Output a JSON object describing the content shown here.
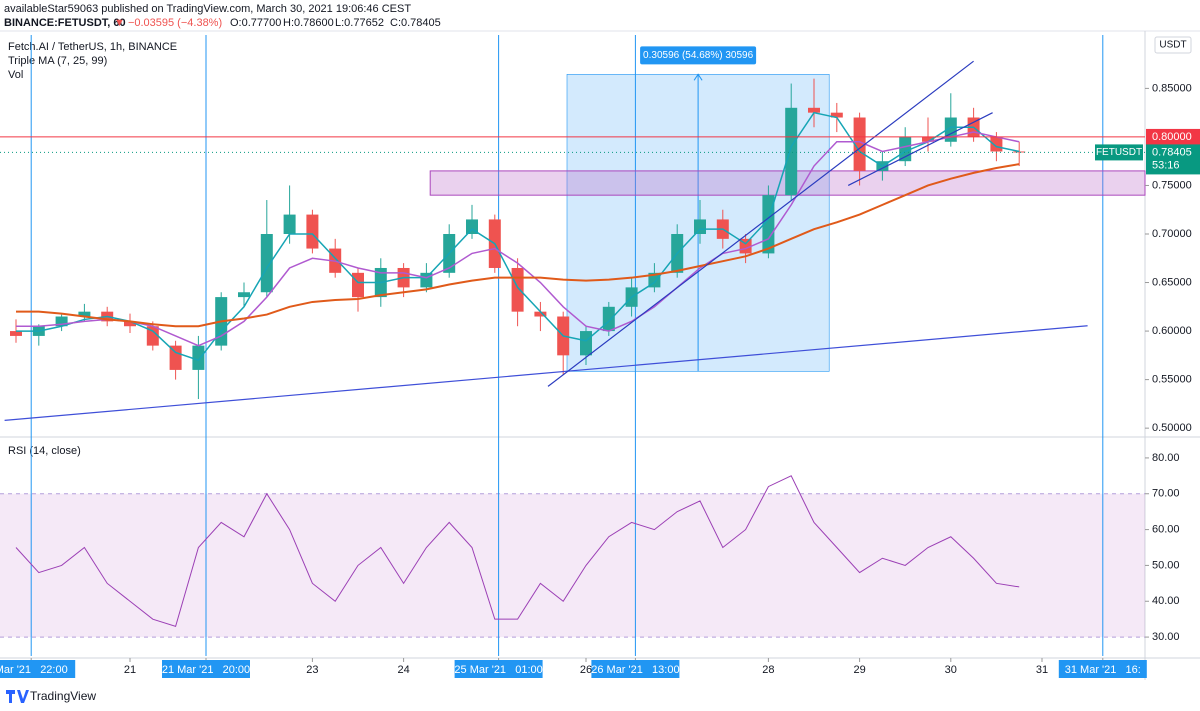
{
  "header": {
    "line1": "availableStar59063 published on TradingView.com, March 30, 2021 19:06:46 CEST",
    "symbol": "BINANCE:FETUSDT, 60",
    "change": "▼ −0.03595 (−4.38%)",
    "ohlc": [
      "O:0.77700",
      "H:0.78600",
      "L:0.77652",
      "C:0.78405"
    ]
  },
  "footer": "TradingView",
  "chart_data": [
    {
      "type": "candlestick",
      "title": "Fetch.AI / TetherUS, 1h, BINANCE",
      "indicator": "Triple MA (7, 25, 99)",
      "volume_label": "Vol",
      "unit": "USDT",
      "x": [
        "2021-03-19T18:00",
        "2021-03-20T00:00",
        "2021-03-20T06:00",
        "2021-03-20T12:00",
        "2021-03-20T18:00",
        "2021-03-21T00:00",
        "2021-03-21T06:00",
        "2021-03-21T12:00",
        "2021-03-21T18:00",
        "2021-03-22T00:00",
        "2021-03-22T06:00",
        "2021-03-22T12:00",
        "2021-03-22T18:00",
        "2021-03-23T00:00",
        "2021-03-23T06:00",
        "2021-03-23T12:00",
        "2021-03-23T18:00",
        "2021-03-24T00:00",
        "2021-03-24T06:00",
        "2021-03-24T12:00",
        "2021-03-24T18:00",
        "2021-03-25T00:00",
        "2021-03-25T06:00",
        "2021-03-25T12:00",
        "2021-03-25T18:00",
        "2021-03-26T00:00",
        "2021-03-26T06:00",
        "2021-03-26T12:00",
        "2021-03-26T18:00",
        "2021-03-27T00:00",
        "2021-03-27T06:00",
        "2021-03-27T12:00",
        "2021-03-27T18:00",
        "2021-03-28T00:00",
        "2021-03-28T06:00",
        "2021-03-28T12:00",
        "2021-03-28T18:00",
        "2021-03-29T00:00",
        "2021-03-29T06:00",
        "2021-03-29T12:00",
        "2021-03-29T18:00",
        "2021-03-30T00:00",
        "2021-03-30T06:00",
        "2021-03-30T12:00",
        "2021-03-30T18:00"
      ],
      "open": [
        0.6,
        0.595,
        0.605,
        0.615,
        0.62,
        0.61,
        0.605,
        0.585,
        0.56,
        0.585,
        0.635,
        0.64,
        0.7,
        0.72,
        0.685,
        0.66,
        0.635,
        0.665,
        0.645,
        0.66,
        0.7,
        0.715,
        0.665,
        0.62,
        0.615,
        0.575,
        0.6,
        0.625,
        0.645,
        0.66,
        0.7,
        0.715,
        0.695,
        0.68,
        0.74,
        0.83,
        0.825,
        0.82,
        0.765,
        0.775,
        0.8,
        0.795,
        0.82,
        0.8,
        0.785
      ],
      "high": [
        0.612,
        0.607,
        0.617,
        0.628,
        0.625,
        0.618,
        0.61,
        0.59,
        0.595,
        0.64,
        0.65,
        0.735,
        0.75,
        0.725,
        0.695,
        0.665,
        0.675,
        0.67,
        0.67,
        0.71,
        0.73,
        0.72,
        0.675,
        0.63,
        0.62,
        0.605,
        0.63,
        0.655,
        0.67,
        0.71,
        0.735,
        0.725,
        0.7,
        0.75,
        0.855,
        0.86,
        0.835,
        0.825,
        0.785,
        0.81,
        0.82,
        0.845,
        0.83,
        0.805,
        0.795
      ],
      "low": [
        0.588,
        0.585,
        0.6,
        0.61,
        0.605,
        0.598,
        0.58,
        0.55,
        0.53,
        0.58,
        0.625,
        0.635,
        0.69,
        0.68,
        0.655,
        0.62,
        0.625,
        0.635,
        0.64,
        0.655,
        0.695,
        0.66,
        0.605,
        0.6,
        0.555,
        0.565,
        0.595,
        0.615,
        0.64,
        0.655,
        0.69,
        0.685,
        0.67,
        0.675,
        0.735,
        0.81,
        0.805,
        0.75,
        0.755,
        0.77,
        0.785,
        0.79,
        0.795,
        0.775,
        0.77
      ],
      "close": [
        0.595,
        0.605,
        0.615,
        0.62,
        0.61,
        0.605,
        0.585,
        0.56,
        0.585,
        0.635,
        0.64,
        0.7,
        0.72,
        0.685,
        0.66,
        0.635,
        0.665,
        0.645,
        0.66,
        0.7,
        0.715,
        0.665,
        0.62,
        0.615,
        0.575,
        0.6,
        0.625,
        0.645,
        0.66,
        0.7,
        0.715,
        0.695,
        0.68,
        0.74,
        0.83,
        0.825,
        0.82,
        0.765,
        0.775,
        0.8,
        0.795,
        0.82,
        0.8,
        0.785,
        0.784
      ],
      "colors": {
        "up": "#26a69a",
        "down": "#ef5350"
      },
      "series": [
        {
          "color": "#16a5b5",
          "values": [
            0.6,
            0.6,
            0.605,
            0.612,
            0.615,
            0.61,
            0.6,
            0.578,
            0.57,
            0.6,
            0.625,
            0.665,
            0.7,
            0.7,
            0.675,
            0.65,
            0.65,
            0.655,
            0.655,
            0.68,
            0.705,
            0.69,
            0.645,
            0.62,
            0.595,
            0.59,
            0.61,
            0.635,
            0.65,
            0.68,
            0.705,
            0.705,
            0.69,
            0.715,
            0.79,
            0.825,
            0.82,
            0.785,
            0.77,
            0.785,
            0.795,
            0.81,
            0.81,
            0.79,
            0.785
          ]
        },
        {
          "color": "#b05ad0",
          "values": [
            0.605,
            0.605,
            0.607,
            0.61,
            0.612,
            0.61,
            0.605,
            0.595,
            0.585,
            0.595,
            0.61,
            0.635,
            0.665,
            0.675,
            0.672,
            0.665,
            0.66,
            0.66,
            0.655,
            0.665,
            0.68,
            0.685,
            0.67,
            0.65,
            0.625,
            0.605,
            0.6,
            0.61,
            0.625,
            0.645,
            0.665,
            0.68,
            0.685,
            0.695,
            0.73,
            0.77,
            0.795,
            0.795,
            0.785,
            0.79,
            0.795,
            0.8,
            0.805,
            0.8,
            0.795
          ]
        },
        {
          "color": "#e05a1a",
          "values": [
            0.62,
            0.62,
            0.618,
            0.615,
            0.612,
            0.61,
            0.607,
            0.605,
            0.605,
            0.61,
            0.613,
            0.617,
            0.625,
            0.63,
            0.632,
            0.633,
            0.637,
            0.64,
            0.643,
            0.648,
            0.652,
            0.655,
            0.655,
            0.655,
            0.653,
            0.652,
            0.653,
            0.655,
            0.658,
            0.662,
            0.667,
            0.672,
            0.677,
            0.685,
            0.695,
            0.705,
            0.712,
            0.72,
            0.73,
            0.74,
            0.75,
            0.757,
            0.763,
            0.768,
            0.772
          ]
        }
      ],
      "ylim": [
        0.495,
        0.905
      ],
      "yticks": [
        {
          "value": 0.5,
          "label": "0.50000"
        },
        {
          "value": 0.55,
          "label": "0.55000"
        },
        {
          "value": 0.6,
          "label": "0.60000"
        },
        {
          "value": 0.65,
          "label": "0.65000"
        },
        {
          "value": 0.7,
          "label": "0.70000"
        },
        {
          "value": 0.75,
          "label": "0.75000"
        },
        {
          "value": 0.85,
          "label": "0.85000"
        }
      ],
      "hline": {
        "value": 0.8,
        "label": "0.80000",
        "color": "#f23645"
      },
      "last": {
        "name": "FETUSDT",
        "value": 0.78405,
        "label": "0.78405",
        "countdown": "53:16",
        "color": "#089981"
      },
      "zone": {
        "start": "2021-03-24T07:00",
        "low": 0.74,
        "high": 0.765
      },
      "measure": {
        "start": "2021-03-25T19:00",
        "end": "2021-03-28T16:00",
        "low": 0.5585,
        "high": 0.8645,
        "label": "0.30596 (54.68%) 30596"
      },
      "trendlines": [
        {
          "x": [
            "2021-03-19T15:00",
            "2021-03-31T12:00"
          ],
          "y": [
            0.508,
            0.6055
          ],
          "color": "#3f4fd8"
        },
        {
          "x": [
            "2021-03-25T14:00",
            "2021-03-30T06:00"
          ],
          "y": [
            0.543,
            0.878
          ],
          "color": "#2a3bbf"
        },
        {
          "x": [
            "2021-03-28T21:00",
            "2021-03-30T11:00"
          ],
          "y": [
            0.75,
            0.825
          ],
          "color": "#2a3bbf"
        }
      ],
      "vlines": [
        "2021-03-19T22:00",
        "2021-03-21T20:00",
        "2021-03-25T01:00",
        "2021-03-26T13:00",
        "2021-03-31T16:00"
      ]
    },
    {
      "type": "line",
      "title": "RSI (14, close)",
      "x": [
        "2021-03-19T18:00",
        "2021-03-20T00:00",
        "2021-03-20T06:00",
        "2021-03-20T12:00",
        "2021-03-20T18:00",
        "2021-03-21T00:00",
        "2021-03-21T06:00",
        "2021-03-21T12:00",
        "2021-03-21T18:00",
        "2021-03-22T00:00",
        "2021-03-22T06:00",
        "2021-03-22T12:00",
        "2021-03-22T18:00",
        "2021-03-23T00:00",
        "2021-03-23T06:00",
        "2021-03-23T12:00",
        "2021-03-23T18:00",
        "2021-03-24T00:00",
        "2021-03-24T06:00",
        "2021-03-24T12:00",
        "2021-03-24T18:00",
        "2021-03-25T00:00",
        "2021-03-25T06:00",
        "2021-03-25T12:00",
        "2021-03-25T18:00",
        "2021-03-26T00:00",
        "2021-03-26T06:00",
        "2021-03-26T12:00",
        "2021-03-26T18:00",
        "2021-03-27T00:00",
        "2021-03-27T06:00",
        "2021-03-27T12:00",
        "2021-03-27T18:00",
        "2021-03-28T00:00",
        "2021-03-28T06:00",
        "2021-03-28T12:00",
        "2021-03-28T18:00",
        "2021-03-29T00:00",
        "2021-03-29T06:00",
        "2021-03-29T12:00",
        "2021-03-29T18:00",
        "2021-03-30T00:00",
        "2021-03-30T06:00",
        "2021-03-30T12:00",
        "2021-03-30T18:00"
      ],
      "values": [
        55,
        48,
        50,
        55,
        45,
        40,
        35,
        33,
        55,
        62,
        58,
        70,
        60,
        45,
        40,
        50,
        55,
        45,
        55,
        62,
        55,
        35,
        35,
        45,
        40,
        50,
        58,
        62,
        60,
        65,
        68,
        55,
        60,
        72,
        75,
        62,
        55,
        48,
        52,
        50,
        55,
        58,
        52,
        45,
        44
      ],
      "color": "#9b3fb5",
      "band": [
        30,
        70
      ],
      "ylim": [
        25,
        85
      ],
      "yticks": [
        {
          "value": 30,
          "label": "30.00"
        },
        {
          "value": 40,
          "label": "40.00"
        },
        {
          "value": 50,
          "label": "50.00"
        },
        {
          "value": 60,
          "label": "60.00"
        },
        {
          "value": 70,
          "label": "70.00"
        },
        {
          "value": 80,
          "label": "80.00"
        }
      ],
      "xticks": [
        {
          "value": "2021-03-19T22:00",
          "label": "Mar '21   22:00"
        },
        {
          "value": "2021-03-21T00:00",
          "label": "21"
        },
        {
          "value": "2021-03-21T20:00",
          "label": "21 Mar '21   20:00"
        },
        {
          "value": "2021-03-23T00:00",
          "label": "23"
        },
        {
          "value": "2021-03-24T00:00",
          "label": "24"
        },
        {
          "value": "2021-03-25T01:00",
          "label": "25 Mar '21   01:00"
        },
        {
          "value": "2021-03-26T00:00",
          "label": "26"
        },
        {
          "value": "2021-03-26T13:00",
          "label": "26 Mar '21   13:00"
        },
        {
          "value": "2021-03-28T00:00",
          "label": "28"
        },
        {
          "value": "2021-03-29T00:00",
          "label": "29"
        },
        {
          "value": "2021-03-30T00:00",
          "label": "30"
        },
        {
          "value": "2021-03-31T00:00",
          "label": "31"
        },
        {
          "value": "2021-03-31T16:00",
          "label": "31 Mar '21   16:"
        }
      ]
    }
  ]
}
